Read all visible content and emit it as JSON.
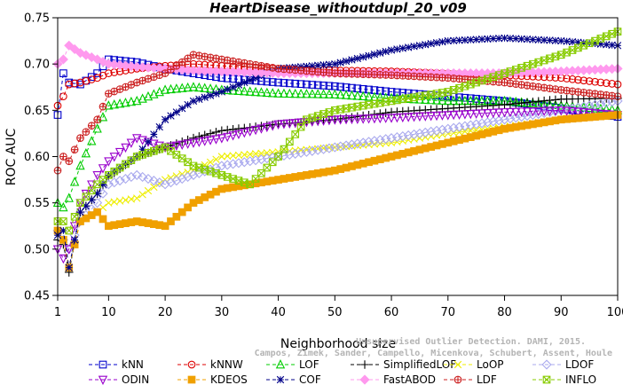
{
  "chart_data": {
    "type": "line",
    "title": "HeartDisease_withoutdupl_20_v09",
    "xlabel": "Neighborhood size",
    "ylabel": "ROC AUC",
    "xlim": [
      1,
      100
    ],
    "ylim": [
      0.45,
      0.75
    ],
    "xticks": [
      1,
      10,
      20,
      30,
      40,
      50,
      60,
      70,
      80,
      90,
      100
    ],
    "yticks": [
      0.45,
      0.5,
      0.55,
      0.6,
      0.65,
      0.7,
      0.75
    ],
    "xtick_labels": [
      "1",
      "10",
      "20",
      "30",
      "40",
      "50",
      "60",
      "70",
      "80",
      "90",
      "100"
    ],
    "ytick_labels": [
      "0.45",
      "0.50",
      "0.55",
      "0.60",
      "0.65",
      "0.70",
      "0.75"
    ],
    "grid": false,
    "legend_position": "bottom",
    "watermark": [
      "Campos, Zimek, Sander, Campello, Micenkova, Schubert, Assent, Houle",
      "Unsupervised Outlier Detection. DAMI, 2015."
    ],
    "series": [
      {
        "name": "kNN",
        "color": "#0000cc",
        "marker": "square",
        "linestyle": "dashed",
        "points": [
          [
            1,
            0.645
          ],
          [
            2,
            0.69
          ],
          [
            3,
            0.68
          ],
          [
            5,
            0.678
          ],
          [
            8,
            0.69
          ],
          [
            10,
            0.705
          ],
          [
            15,
            0.702
          ],
          [
            20,
            0.695
          ],
          [
            25,
            0.69
          ],
          [
            30,
            0.685
          ],
          [
            40,
            0.68
          ],
          [
            50,
            0.676
          ],
          [
            60,
            0.67
          ],
          [
            70,
            0.665
          ],
          [
            80,
            0.66
          ],
          [
            90,
            0.652
          ],
          [
            100,
            0.643
          ]
        ]
      },
      {
        "name": "kNNW",
        "color": "#dd0000",
        "marker": "circle",
        "linestyle": "dashed",
        "points": [
          [
            1,
            0.655
          ],
          [
            2,
            0.665
          ],
          [
            3,
            0.678
          ],
          [
            5,
            0.68
          ],
          [
            8,
            0.685
          ],
          [
            10,
            0.69
          ],
          [
            15,
            0.695
          ],
          [
            20,
            0.698
          ],
          [
            25,
            0.7
          ],
          [
            30,
            0.698
          ],
          [
            40,
            0.695
          ],
          [
            50,
            0.693
          ],
          [
            60,
            0.692
          ],
          [
            70,
            0.69
          ],
          [
            80,
            0.688
          ],
          [
            90,
            0.685
          ],
          [
            100,
            0.678
          ]
        ]
      },
      {
        "name": "LOF",
        "color": "#00cc00",
        "marker": "triangle-up",
        "linestyle": "dashed",
        "points": [
          [
            1,
            0.55
          ],
          [
            2,
            0.545
          ],
          [
            3,
            0.555
          ],
          [
            5,
            0.59
          ],
          [
            8,
            0.63
          ],
          [
            10,
            0.655
          ],
          [
            15,
            0.66
          ],
          [
            20,
            0.672
          ],
          [
            25,
            0.675
          ],
          [
            30,
            0.672
          ],
          [
            40,
            0.668
          ],
          [
            50,
            0.667
          ],
          [
            60,
            0.663
          ],
          [
            70,
            0.66
          ],
          [
            80,
            0.66
          ],
          [
            90,
            0.655
          ],
          [
            100,
            0.65
          ]
        ]
      },
      {
        "name": "SimplifiedLOF",
        "color": "#000000",
        "marker": "plus",
        "linestyle": "dashed",
        "points": [
          [
            1,
            0.51
          ],
          [
            2,
            0.505
          ],
          [
            3,
            0.475
          ],
          [
            5,
            0.54
          ],
          [
            8,
            0.56
          ],
          [
            10,
            0.578
          ],
          [
            15,
            0.6
          ],
          [
            20,
            0.61
          ],
          [
            25,
            0.62
          ],
          [
            30,
            0.628
          ],
          [
            40,
            0.635
          ],
          [
            50,
            0.64
          ],
          [
            60,
            0.648
          ],
          [
            70,
            0.652
          ],
          [
            80,
            0.656
          ],
          [
            90,
            0.662
          ],
          [
            100,
            0.663
          ]
        ]
      },
      {
        "name": "LoOP",
        "color": "#eeee00",
        "marker": "x",
        "linestyle": "dashed",
        "points": [
          [
            1,
            0.52
          ],
          [
            2,
            0.51
          ],
          [
            3,
            0.48
          ],
          [
            5,
            0.53
          ],
          [
            8,
            0.54
          ],
          [
            10,
            0.55
          ],
          [
            15,
            0.555
          ],
          [
            20,
            0.575
          ],
          [
            25,
            0.585
          ],
          [
            30,
            0.6
          ],
          [
            40,
            0.605
          ],
          [
            50,
            0.61
          ],
          [
            60,
            0.615
          ],
          [
            70,
            0.625
          ],
          [
            80,
            0.632
          ],
          [
            90,
            0.64
          ],
          [
            100,
            0.645
          ]
        ]
      },
      {
        "name": "LDOF",
        "color": "#aaaaee",
        "marker": "diamond",
        "linestyle": "dashed",
        "points": [
          [
            1,
            0.52
          ],
          [
            2,
            0.51
          ],
          [
            3,
            0.5
          ],
          [
            5,
            0.53
          ],
          [
            8,
            0.55
          ],
          [
            10,
            0.57
          ],
          [
            15,
            0.58
          ],
          [
            20,
            0.57
          ],
          [
            25,
            0.58
          ],
          [
            30,
            0.59
          ],
          [
            40,
            0.6
          ],
          [
            50,
            0.61
          ],
          [
            60,
            0.62
          ],
          [
            70,
            0.63
          ],
          [
            80,
            0.64
          ],
          [
            90,
            0.65
          ],
          [
            100,
            0.66
          ]
        ]
      },
      {
        "name": "ODIN",
        "color": "#9900cc",
        "marker": "triangle-down",
        "linestyle": "dashed",
        "points": [
          [
            1,
            0.5
          ],
          [
            2,
            0.49
          ],
          [
            3,
            0.5
          ],
          [
            5,
            0.55
          ],
          [
            8,
            0.58
          ],
          [
            10,
            0.595
          ],
          [
            15,
            0.62
          ],
          [
            20,
            0.61
          ],
          [
            25,
            0.615
          ],
          [
            30,
            0.62
          ],
          [
            40,
            0.635
          ],
          [
            50,
            0.64
          ],
          [
            60,
            0.642
          ],
          [
            70,
            0.645
          ],
          [
            80,
            0.648
          ],
          [
            90,
            0.65
          ],
          [
            100,
            0.645
          ]
        ]
      },
      {
        "name": "KDEOS",
        "color": "#f0a000",
        "marker": "square-filled",
        "linestyle": "dashed",
        "points": [
          [
            1,
            0.52
          ],
          [
            2,
            0.51
          ],
          [
            3,
            0.48
          ],
          [
            5,
            0.53
          ],
          [
            8,
            0.54
          ],
          [
            10,
            0.525
          ],
          [
            15,
            0.53
          ],
          [
            20,
            0.525
          ],
          [
            25,
            0.55
          ],
          [
            30,
            0.565
          ],
          [
            40,
            0.575
          ],
          [
            50,
            0.585
          ],
          [
            60,
            0.6
          ],
          [
            70,
            0.615
          ],
          [
            80,
            0.63
          ],
          [
            90,
            0.64
          ],
          [
            100,
            0.645
          ]
        ]
      },
      {
        "name": "COF",
        "color": "#000088",
        "marker": "star",
        "linestyle": "dashed",
        "points": [
          [
            1,
            0.515
          ],
          [
            2,
            0.52
          ],
          [
            3,
            0.48
          ],
          [
            5,
            0.54
          ],
          [
            8,
            0.56
          ],
          [
            10,
            0.58
          ],
          [
            15,
            0.6
          ],
          [
            20,
            0.64
          ],
          [
            25,
            0.66
          ],
          [
            30,
            0.67
          ],
          [
            40,
            0.695
          ],
          [
            50,
            0.7
          ],
          [
            60,
            0.715
          ],
          [
            70,
            0.725
          ],
          [
            80,
            0.728
          ],
          [
            90,
            0.725
          ],
          [
            100,
            0.72
          ]
        ]
      },
      {
        "name": "FastABOD",
        "color": "#ff99ee",
        "marker": "diamond-filled",
        "linestyle": "dashed",
        "points": [
          [
            1,
            0.7
          ],
          [
            2,
            0.705
          ],
          [
            3,
            0.72
          ],
          [
            5,
            0.712
          ],
          [
            8,
            0.705
          ],
          [
            10,
            0.7
          ],
          [
            15,
            0.697
          ],
          [
            20,
            0.695
          ],
          [
            25,
            0.693
          ],
          [
            30,
            0.692
          ],
          [
            40,
            0.69
          ],
          [
            50,
            0.69
          ],
          [
            60,
            0.69
          ],
          [
            70,
            0.69
          ],
          [
            80,
            0.69
          ],
          [
            90,
            0.692
          ],
          [
            100,
            0.695
          ]
        ]
      },
      {
        "name": "LDF",
        "color": "#cc2222",
        "marker": "circle-plus",
        "linestyle": "dashed",
        "points": [
          [
            1,
            0.585
          ],
          [
            2,
            0.6
          ],
          [
            3,
            0.595
          ],
          [
            5,
            0.62
          ],
          [
            8,
            0.64
          ],
          [
            10,
            0.668
          ],
          [
            15,
            0.68
          ],
          [
            20,
            0.69
          ],
          [
            25,
            0.71
          ],
          [
            30,
            0.705
          ],
          [
            40,
            0.695
          ],
          [
            50,
            0.69
          ],
          [
            60,
            0.688
          ],
          [
            70,
            0.685
          ],
          [
            80,
            0.68
          ],
          [
            90,
            0.672
          ],
          [
            100,
            0.665
          ]
        ]
      },
      {
        "name": "INFLO",
        "color": "#88cc00",
        "marker": "star-square",
        "linestyle": "dashed",
        "points": [
          [
            1,
            0.53
          ],
          [
            2,
            0.53
          ],
          [
            3,
            0.52
          ],
          [
            5,
            0.55
          ],
          [
            8,
            0.57
          ],
          [
            10,
            0.58
          ],
          [
            15,
            0.6
          ],
          [
            20,
            0.61
          ],
          [
            25,
            0.59
          ],
          [
            30,
            0.58
          ],
          [
            35,
            0.57
          ],
          [
            40,
            0.6
          ],
          [
            45,
            0.64
          ],
          [
            50,
            0.65
          ],
          [
            60,
            0.66
          ],
          [
            70,
            0.67
          ],
          [
            80,
            0.69
          ],
          [
            90,
            0.71
          ],
          [
            100,
            0.735
          ]
        ]
      }
    ]
  }
}
